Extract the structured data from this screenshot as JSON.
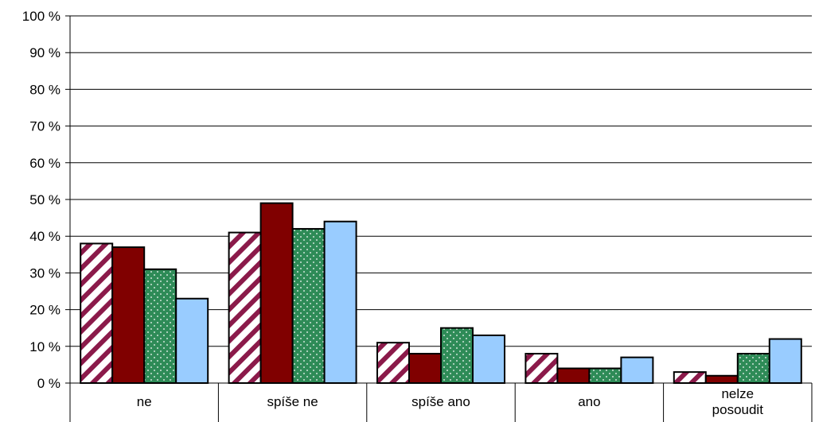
{
  "chart_data": {
    "type": "bar",
    "categories": [
      "ne",
      "spíše ne",
      "spíše ano",
      "ano",
      "nelze\nposoudit"
    ],
    "series": [
      {
        "values": [
          38,
          41,
          11,
          8,
          3
        ],
        "color": "#8B1A4A",
        "pattern": "diagonal-stripes"
      },
      {
        "values": [
          37,
          49,
          8,
          4,
          2
        ],
        "color": "#800000",
        "pattern": "solid"
      },
      {
        "values": [
          31,
          42,
          15,
          4,
          8
        ],
        "color": "#2E8B57",
        "pattern": "dots"
      },
      {
        "values": [
          23,
          44,
          13,
          7,
          12
        ],
        "color": "#99CCFF",
        "pattern": "solid"
      }
    ],
    "ylim": [
      0,
      100
    ],
    "yticks": [
      "0 %",
      "10 %",
      "20 %",
      "30 %",
      "40 %",
      "50 %",
      "60 %",
      "70 %",
      "80 %",
      "90 %",
      "100 %"
    ],
    "grid": true,
    "title": "",
    "xlabel": "",
    "ylabel": ""
  }
}
